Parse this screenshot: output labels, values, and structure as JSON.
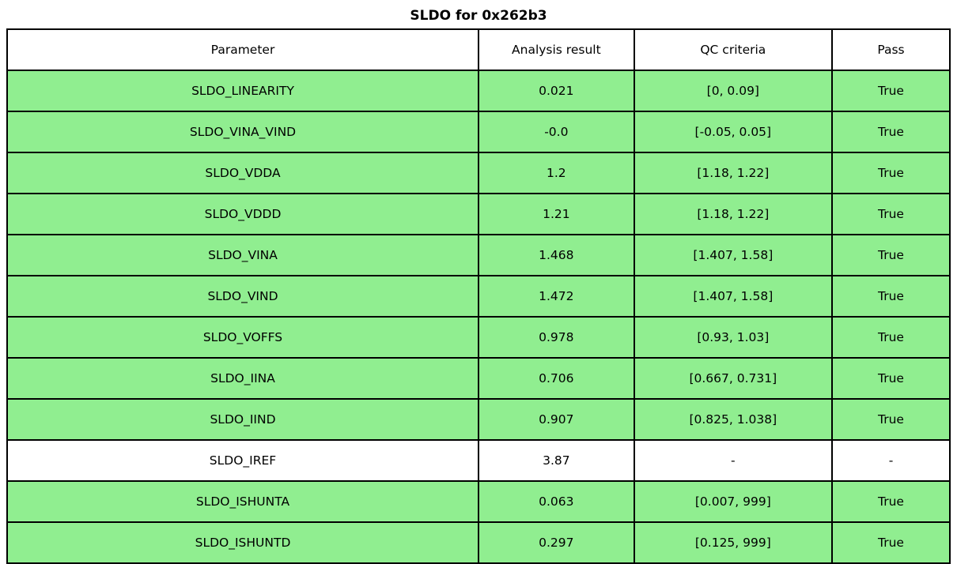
{
  "title": "SLDO for 0x262b3",
  "colors": {
    "pass_green": "#90ee90",
    "neutral_white": "#ffffff",
    "border_black": "#000000"
  },
  "table": {
    "headers": [
      "Parameter",
      "Analysis result",
      "QC criteria",
      "Pass"
    ],
    "rows": [
      {
        "parameter": "SLDO_LINEARITY",
        "result": "0.021",
        "criteria": "[0, 0.09]",
        "pass": "True",
        "highlight": true
      },
      {
        "parameter": "SLDO_VINA_VIND",
        "result": "-0.0",
        "criteria": "[-0.05, 0.05]",
        "pass": "True",
        "highlight": true
      },
      {
        "parameter": "SLDO_VDDA",
        "result": "1.2",
        "criteria": "[1.18, 1.22]",
        "pass": "True",
        "highlight": true
      },
      {
        "parameter": "SLDO_VDDD",
        "result": "1.21",
        "criteria": "[1.18, 1.22]",
        "pass": "True",
        "highlight": true
      },
      {
        "parameter": "SLDO_VINA",
        "result": "1.468",
        "criteria": "[1.407, 1.58]",
        "pass": "True",
        "highlight": true
      },
      {
        "parameter": "SLDO_VIND",
        "result": "1.472",
        "criteria": "[1.407, 1.58]",
        "pass": "True",
        "highlight": true
      },
      {
        "parameter": "SLDO_VOFFS",
        "result": "0.978",
        "criteria": "[0.93, 1.03]",
        "pass": "True",
        "highlight": true
      },
      {
        "parameter": "SLDO_IINA",
        "result": "0.706",
        "criteria": "[0.667, 0.731]",
        "pass": "True",
        "highlight": true
      },
      {
        "parameter": "SLDO_IIND",
        "result": "0.907",
        "criteria": "[0.825, 1.038]",
        "pass": "True",
        "highlight": true
      },
      {
        "parameter": "SLDO_IREF",
        "result": "3.87",
        "criteria": "-",
        "pass": "-",
        "highlight": false
      },
      {
        "parameter": "SLDO_ISHUNTA",
        "result": "0.063",
        "criteria": "[0.007, 999]",
        "pass": "True",
        "highlight": true
      },
      {
        "parameter": "SLDO_ISHUNTD",
        "result": "0.297",
        "criteria": "[0.125, 999]",
        "pass": "True",
        "highlight": true
      }
    ]
  },
  "chart_data": {
    "type": "table",
    "title": "SLDO for 0x262b3",
    "columns": [
      "Parameter",
      "Analysis result",
      "QC criteria",
      "Pass"
    ],
    "rows": [
      [
        "SLDO_LINEARITY",
        0.021,
        "[0, 0.09]",
        true
      ],
      [
        "SLDO_VINA_VIND",
        -0.0,
        "[-0.05, 0.05]",
        true
      ],
      [
        "SLDO_VDDA",
        1.2,
        "[1.18, 1.22]",
        true
      ],
      [
        "SLDO_VDDD",
        1.21,
        "[1.18, 1.22]",
        true
      ],
      [
        "SLDO_VINA",
        1.468,
        "[1.407, 1.58]",
        true
      ],
      [
        "SLDO_VIND",
        1.472,
        "[1.407, 1.58]",
        true
      ],
      [
        "SLDO_VOFFS",
        0.978,
        "[0.93, 1.03]",
        true
      ],
      [
        "SLDO_IINA",
        0.706,
        "[0.667, 0.731]",
        true
      ],
      [
        "SLDO_IIND",
        0.907,
        "[0.825, 1.038]",
        true
      ],
      [
        "SLDO_IREF",
        3.87,
        null,
        null
      ],
      [
        "SLDO_ISHUNTA",
        0.063,
        "[0.007, 999]",
        true
      ],
      [
        "SLDO_ISHUNTD",
        0.297,
        "[0.125, 999]",
        true
      ]
    ],
    "layout": {
      "row_color_pass": "#90ee90",
      "row_color_no_criteria": "#ffffff",
      "header_color": "#ffffff",
      "grid": true
    }
  }
}
